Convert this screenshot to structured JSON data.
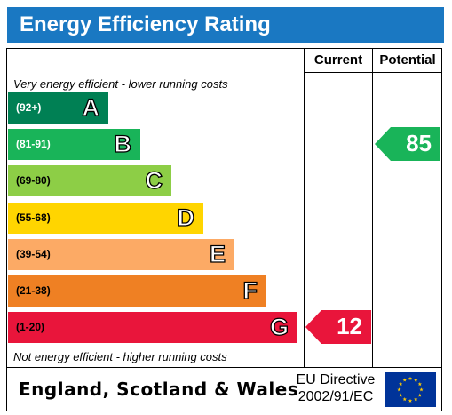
{
  "title": "Energy Efficiency Rating",
  "columns": {
    "current": "Current",
    "potential": "Potential"
  },
  "top_caption": "Very energy efficient - lower running costs",
  "bottom_caption": "Not energy efficient - higher running costs",
  "bands": [
    {
      "range": "(92+)",
      "letter": "A",
      "color": "#008054",
      "light_text": true
    },
    {
      "range": "(81-91)",
      "letter": "B",
      "color": "#19b459",
      "light_text": true
    },
    {
      "range": "(69-80)",
      "letter": "C",
      "color": "#8dce46",
      "light_text": false
    },
    {
      "range": "(55-68)",
      "letter": "D",
      "color": "#ffd500",
      "light_text": false
    },
    {
      "range": "(39-54)",
      "letter": "E",
      "color": "#fcaa65",
      "light_text": false
    },
    {
      "range": "(21-38)",
      "letter": "F",
      "color": "#ef8023",
      "light_text": false
    },
    {
      "range": "(1-20)",
      "letter": "G",
      "color": "#e9153b",
      "light_text": false
    }
  ],
  "current_rating": {
    "value": "12",
    "band": "G",
    "color": "#e9153b"
  },
  "potential_rating": {
    "value": "85",
    "band": "B",
    "color": "#19b459"
  },
  "footer": {
    "region": "England, Scotland & Wales",
    "directive_line1": "EU Directive",
    "directive_line2": "2002/91/EC",
    "flag_icon": "eu-flag-icon",
    "flag_color": "#003399",
    "star_color": "#ffcc00"
  }
}
